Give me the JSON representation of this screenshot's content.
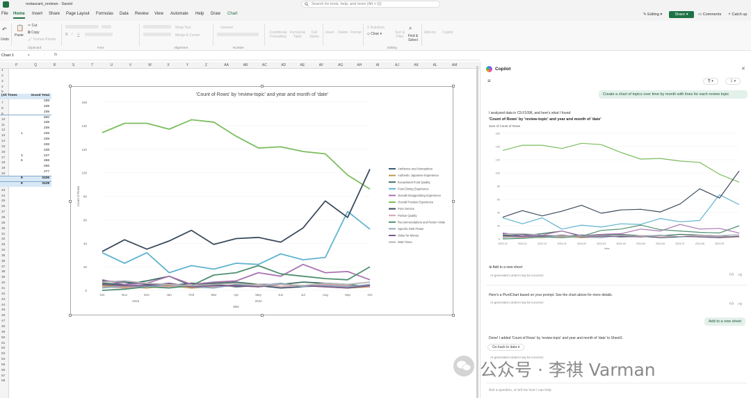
{
  "app": {
    "file_name": "restaurant_reviews",
    "save_state": "Saved",
    "search_placeholder": "Search for tools, help, and more (Alt + Q)",
    "file_tab": "File",
    "tabs": [
      "Home",
      "Insert",
      "Share",
      "Page Layout",
      "Formulas",
      "Data",
      "Review",
      "View",
      "Automate",
      "Help",
      "Draw",
      "Chart"
    ],
    "active_tab": "Home",
    "editing_label": "Editing",
    "share_label": "Share",
    "comments_label": "Comments",
    "catchup_label": "Catch up"
  },
  "ribbon": {
    "undo_label": "Undo",
    "paste_label": "Paste",
    "cut_label": "Cut",
    "copy_label": "Copy",
    "format_painter_label": "Format Painter",
    "clipboard_group": "Clipboard",
    "font_group": "Font",
    "alignment_group": "Alignment",
    "number_group": "Number",
    "wrap_text_label": "Wrap Text",
    "merge_label": "Merge & Center",
    "general_label": "General",
    "conditional_label": "Conditional Formatting",
    "format_table_label": "Format As Table",
    "cell_styles_label": "Cell Styles",
    "insert_label": "Insert",
    "delete_label": "Delete",
    "format_label": "Format",
    "sum_label": "AutoSum",
    "clear_label": "Clear",
    "sort_label": "Sort & Filter",
    "find_label": "Find & Select",
    "editing_group": "Editing",
    "addins_label": "Add-ins",
    "copilot_label": "Copilot"
  },
  "formula_bar": {
    "name_box": "Chart 1",
    "fx": "fx"
  },
  "grid": {
    "columns": [
      "P",
      "Q",
      "R",
      "S",
      "T",
      "U",
      "V",
      "W",
      "X",
      "Y",
      "Z",
      "AA",
      "AB",
      "AC",
      "AD",
      "AE",
      "AF",
      "AG",
      "AH",
      "AI",
      "AJ",
      "AK",
      "AL",
      "AM"
    ],
    "rows": [
      "1",
      "2",
      "3",
      "4",
      "5",
      "6",
      "7",
      "8",
      "9",
      "10",
      "11",
      "12",
      "13",
      "14",
      "15",
      "16",
      "17",
      "18",
      "19",
      "20",
      "21",
      "22",
      "23",
      "24",
      "25",
      "26",
      "27",
      "28",
      "29",
      "30",
      "31",
      "32",
      "33",
      "34",
      "35",
      "36",
      "37",
      "38",
      "39",
      "40",
      "41",
      "42",
      "43",
      "44",
      "45",
      "46",
      "47",
      "48",
      "49",
      "50",
      "51",
      "52",
      "53",
      "54",
      "55",
      "56",
      "57",
      "58"
    ]
  },
  "pivot": {
    "header_left": "(All Times",
    "header_right": "Grand Total",
    "rows": [
      {
        "a": "",
        "b": "238"
      },
      {
        "a": "",
        "b": "238"
      },
      {
        "a": "",
        "b": "238"
      },
      {
        "a": "",
        "b": "600"
      },
      {
        "a": "",
        "b": "238"
      },
      {
        "a": "",
        "b": "238"
      },
      {
        "a": "1",
        "b": "238"
      },
      {
        "a": "",
        "b": "238"
      },
      {
        "a": "",
        "b": "238"
      },
      {
        "a": "",
        "b": "238"
      },
      {
        "a": "3",
        "b": "247"
      },
      {
        "a": "5",
        "b": "258"
      },
      {
        "a": "",
        "b": "266"
      },
      {
        "a": "",
        "b": "277"
      },
      {
        "a": "8",
        "b": "2436"
      },
      {
        "a": "8",
        "b": "3128"
      }
    ]
  },
  "chart_data": {
    "type": "line",
    "title": "'Count of Rows' by 'review-topic' and year and month of 'date'",
    "xlabel": "date",
    "ylabel": "Count of Rows",
    "ylim": [
      0,
      160
    ],
    "yticks": [
      "0",
      "20",
      "40",
      "60",
      "80",
      "100",
      "120",
      "140",
      "160"
    ],
    "categories": [
      "Oct",
      "Nov",
      "Dec",
      "Jan",
      "Feb",
      "Mar",
      "Apr",
      "May",
      "Jun",
      "Jul",
      "Aug",
      "Sep",
      "Oct"
    ],
    "year_labels": [
      "2023",
      "2024"
    ],
    "legend_position": "right",
    "series": [
      {
        "name": "Ambience and Atmosphere",
        "color": "#3b5a6f",
        "values": [
          8,
          7,
          5,
          4,
          6,
          5,
          3,
          4,
          2,
          3,
          5,
          3,
          4
        ]
      },
      {
        "name": "Authentic Japanese Experience",
        "color": "#b89b4f",
        "values": [
          4,
          3,
          2,
          4,
          2,
          3,
          4,
          3,
          5,
          4,
          3,
          2,
          3
        ]
      },
      {
        "name": "Exceptional Food Quality",
        "color": "#3c6e61",
        "values": [
          6,
          5,
          8,
          12,
          4,
          6,
          7,
          5,
          5,
          7,
          6,
          5,
          3
        ]
      },
      {
        "name": "Food Dining Experience",
        "color": "#5fb3cf",
        "values": [
          32,
          23,
          32,
          15,
          21,
          18,
          23,
          22,
          31,
          26,
          28,
          67,
          52
        ]
      },
      {
        "name": "Overall Disappointing Experience",
        "color": "#a873b0",
        "values": [
          9,
          5,
          6,
          12,
          5,
          7,
          8,
          15,
          12,
          22,
          15,
          16,
          9
        ]
      },
      {
        "name": "Overall Positive Experience",
        "color": "#7bbd5e",
        "values": [
          134,
          142,
          142,
          137,
          145,
          143,
          131,
          121,
          122,
          118,
          116,
          98,
          86
        ]
      },
      {
        "name": "Poor Service",
        "color": "#3a4a5c",
        "values": [
          33,
          43,
          35,
          42,
          51,
          39,
          44,
          45,
          41,
          53,
          76,
          62,
          103
        ]
      },
      {
        "name": "Portion Quality",
        "color": "#d5a3ae",
        "values": [
          3,
          2,
          4,
          3,
          5,
          3,
          4,
          5,
          3,
          4,
          5,
          4,
          3
        ]
      },
      {
        "name": "Recommendations and Return Visits",
        "color": "#4f8f6e",
        "values": [
          0,
          1,
          3,
          2,
          4,
          13,
          15,
          21,
          14,
          12,
          10,
          9,
          20
        ]
      },
      {
        "name": "Specific Dish Praise",
        "color": "#8fa9c0",
        "values": [
          2,
          4,
          3,
          5,
          3,
          2,
          5,
          4,
          6,
          3,
          4,
          3,
          5
        ]
      },
      {
        "name": "Value for Money",
        "color": "#7a5a8a",
        "values": [
          5,
          4,
          4,
          6,
          3,
          4,
          4,
          3,
          5,
          4,
          3,
          2,
          4
        ]
      },
      {
        "name": "Wait Times",
        "color": "#b4b4b4",
        "values": [
          7,
          8,
          6,
          5,
          4,
          5,
          6,
          4,
          5,
          4,
          6,
          5,
          7
        ]
      }
    ]
  },
  "copilot": {
    "title": "Copilot",
    "user_prompt": "Create a chart of topics over time by month with lines for each review topic",
    "analysis_intro": "I analyzed data in C5:F1096, and here's what I found:",
    "mini_chart_title": "'Count of Rows' by 'review-topic' and year and month of 'date'",
    "mini_chart_subtitle": "Sum of Count of Rows",
    "mini_chart_xlabel": "date",
    "mini_chart_yticks": [
      "0",
      "20",
      "40",
      "60",
      "80",
      "100",
      "120",
      "140",
      "160"
    ],
    "mini_chart_xticks": [
      "2023-10",
      "2023-11",
      "2023-12",
      "2024-01",
      "2024-02",
      "2024-03",
      "2024-04",
      "2024-05",
      "2024-06",
      "2024-07",
      "2024-08",
      "2024-09"
    ],
    "add_sheet_label": "Add to a new sheet",
    "ai_note": "AI-generated content may be incorrect",
    "pivot_message": "Here's a PivotChart based on your prompt. See the chart above for more details.",
    "user_followup": "Add to a new sheet",
    "done_message": "Done! I added 'Count of Rows' by 'review-topic' and year and month of 'date' to Sheet3.",
    "go_back_label": "Go back to data",
    "input_placeholder": "Ask a question, or tell me how I can help"
  },
  "watermark": {
    "text": "公众号 · 李祺 Varman"
  }
}
